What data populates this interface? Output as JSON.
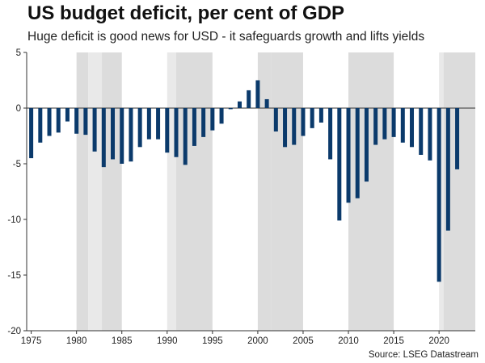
{
  "title": "US budget deficit, per cent of GDP",
  "subtitle": "Huge deficit is good news for USD - it safeguards growth and lifts yields",
  "source": "Source: LSEG Datastream",
  "colors": {
    "bar": "#0b3a6b",
    "recession_shade": "#dcdcdc",
    "recession_shade_light": "#e9e9e9",
    "axis": "#333333",
    "zero_line": "#333333"
  },
  "chart_data": {
    "type": "bar",
    "x": [
      1975,
      1976,
      1977,
      1978,
      1979,
      1980,
      1981,
      1982,
      1983,
      1984,
      1985,
      1986,
      1987,
      1988,
      1989,
      1990,
      1991,
      1992,
      1993,
      1994,
      1995,
      1996,
      1997,
      1998,
      1999,
      2000,
      2001,
      2002,
      2003,
      2004,
      2005,
      2006,
      2007,
      2008,
      2009,
      2010,
      2011,
      2012,
      2013,
      2014,
      2015,
      2016,
      2017,
      2018,
      2019,
      2020,
      2021,
      2022,
      2023
    ],
    "values": [
      -4.5,
      -3.1,
      -2.5,
      -2.2,
      -1.2,
      -2.3,
      -2.4,
      -3.9,
      -5.3,
      -4.6,
      -5.0,
      -4.8,
      -3.5,
      -2.8,
      -2.8,
      -4.0,
      -4.4,
      -5.1,
      -3.4,
      -2.6,
      -2.0,
      -1.4,
      -0.1,
      0.6,
      1.6,
      2.5,
      0.8,
      -2.1,
      -3.5,
      -3.3,
      -2.5,
      -1.8,
      -1.3,
      -4.6,
      -10.1,
      -8.5,
      -8.1,
      -6.6,
      -3.3,
      -2.8,
      -2.6,
      -3.1,
      -3.5,
      -4.2,
      -4.7,
      -15.6,
      -11.0,
      -5.5,
      null
    ],
    "shaded_periods": [
      {
        "start": 1980.0,
        "end": 1981.3,
        "tone": "dark"
      },
      {
        "start": 1981.3,
        "end": 1982.8,
        "tone": "light"
      },
      {
        "start": 1982.8,
        "end": 1985.0,
        "tone": "dark"
      },
      {
        "start": 1990.0,
        "end": 1991.0,
        "tone": "light"
      },
      {
        "start": 1991.0,
        "end": 1995.0,
        "tone": "dark"
      },
      {
        "start": 2000.0,
        "end": 2001.5,
        "tone": "dark"
      },
      {
        "start": 2001.5,
        "end": 2005.0,
        "tone": "dark"
      },
      {
        "start": 2010.0,
        "end": 2015.0,
        "tone": "dark"
      },
      {
        "start": 2020.0,
        "end": 2020.5,
        "tone": "light"
      },
      {
        "start": 2020.5,
        "end": 2024.0,
        "tone": "dark"
      }
    ],
    "xlim": [
      1974.5,
      2024.0
    ],
    "ylim": [
      -20,
      5
    ],
    "x_ticks": [
      1975,
      1980,
      1985,
      1990,
      1995,
      2000,
      2005,
      2010,
      2015,
      2020
    ],
    "x_tick_labels": [
      "1975",
      "1980",
      "1985",
      "1990",
      "1995",
      "2000",
      "2005",
      "2010",
      "2015",
      "2020"
    ],
    "y_ticks": [
      5,
      0,
      -5,
      -10,
      -15,
      -20
    ],
    "y_tick_labels": [
      "5",
      "0",
      "-5",
      "-10",
      "-15",
      "-20"
    ],
    "xlabel": "",
    "ylabel": "",
    "grid": false,
    "legend": "none"
  }
}
